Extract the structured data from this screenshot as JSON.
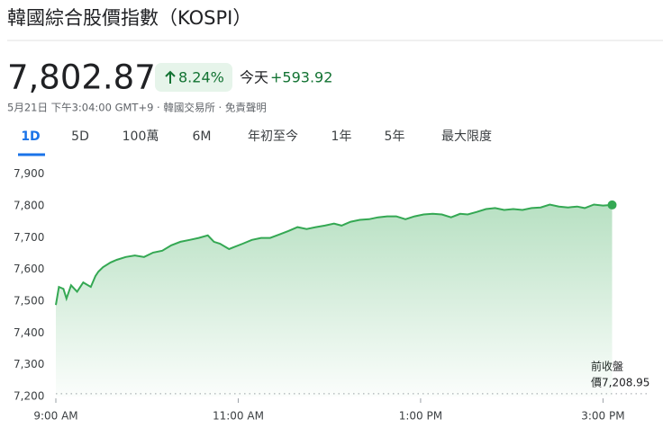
{
  "quote": {
    "title": "韓國綜合股價指數（KOSPI）",
    "price": "7,802.87",
    "percent_change": "8.24%",
    "today_label": "今天",
    "change": "+593.92",
    "timestamp": "5月21日 下午3:04:00 GMT+9 · 韓國交易所 · 免責聲明"
  },
  "tabs": [
    "1D",
    "5D",
    "100萬",
    "6M",
    "年初至今",
    "1年",
    "5年",
    "最大限度"
  ],
  "chart_data": {
    "type": "line",
    "x": [
      540,
      542,
      545,
      547,
      550,
      554,
      558,
      563,
      566,
      568,
      571,
      576,
      580,
      586,
      592,
      598,
      604,
      610,
      616,
      622,
      628,
      634,
      640,
      644,
      648,
      654,
      657,
      663,
      669,
      675,
      681,
      687,
      693,
      699,
      705,
      711,
      717,
      723,
      728,
      734,
      740,
      746,
      752,
      758,
      764,
      770,
      776,
      782,
      788,
      794,
      800,
      806,
      811,
      817,
      823,
      829,
      835,
      841,
      847,
      853,
      859,
      865,
      871,
      877,
      883,
      888,
      894,
      900,
      906
    ],
    "series": [
      {
        "name": "KOSPI",
        "color": "#34a853",
        "values": [
          7488,
          7545,
          7539,
          7508,
          7550,
          7530,
          7559,
          7545,
          7579,
          7593,
          7607,
          7622,
          7630,
          7639,
          7644,
          7639,
          7653,
          7659,
          7676,
          7687,
          7693,
          7699,
          7707,
          7687,
          7681,
          7664,
          7670,
          7681,
          7693,
          7699,
          7699,
          7710,
          7721,
          7733,
          7727,
          7733,
          7738,
          7744,
          7738,
          7750,
          7756,
          7758,
          7764,
          7767,
          7767,
          7758,
          7767,
          7773,
          7775,
          7773,
          7764,
          7775,
          7773,
          7781,
          7790,
          7793,
          7787,
          7790,
          7787,
          7793,
          7795,
          7804,
          7798,
          7795,
          7798,
          7793,
          7804,
          7801,
          7802.87
        ]
      }
    ],
    "xlim": [
      540,
      930
    ],
    "xticks": [
      {
        "value": 540,
        "label": "9:00 AM"
      },
      {
        "value": 660,
        "label": "11:00 AM"
      },
      {
        "value": 780,
        "label": "1:00 PM"
      },
      {
        "value": 900,
        "label": "3:00 PM"
      }
    ],
    "ylim": [
      7200,
      7930
    ],
    "yticks": [
      {
        "value": 7200,
        "label": "7,200"
      },
      {
        "value": 7300,
        "label": "7,300"
      },
      {
        "value": 7400,
        "label": "7,400"
      },
      {
        "value": 7500,
        "label": "7,500"
      },
      {
        "value": 7600,
        "label": "7,600"
      },
      {
        "value": 7700,
        "label": "7,700"
      },
      {
        "value": 7800,
        "label": "7,800"
      },
      {
        "value": 7900,
        "label": "7,900"
      }
    ],
    "previous_close": {
      "value": 7208.95,
      "caption": "前收盤",
      "label": "價7,208.95"
    },
    "grid": false
  }
}
